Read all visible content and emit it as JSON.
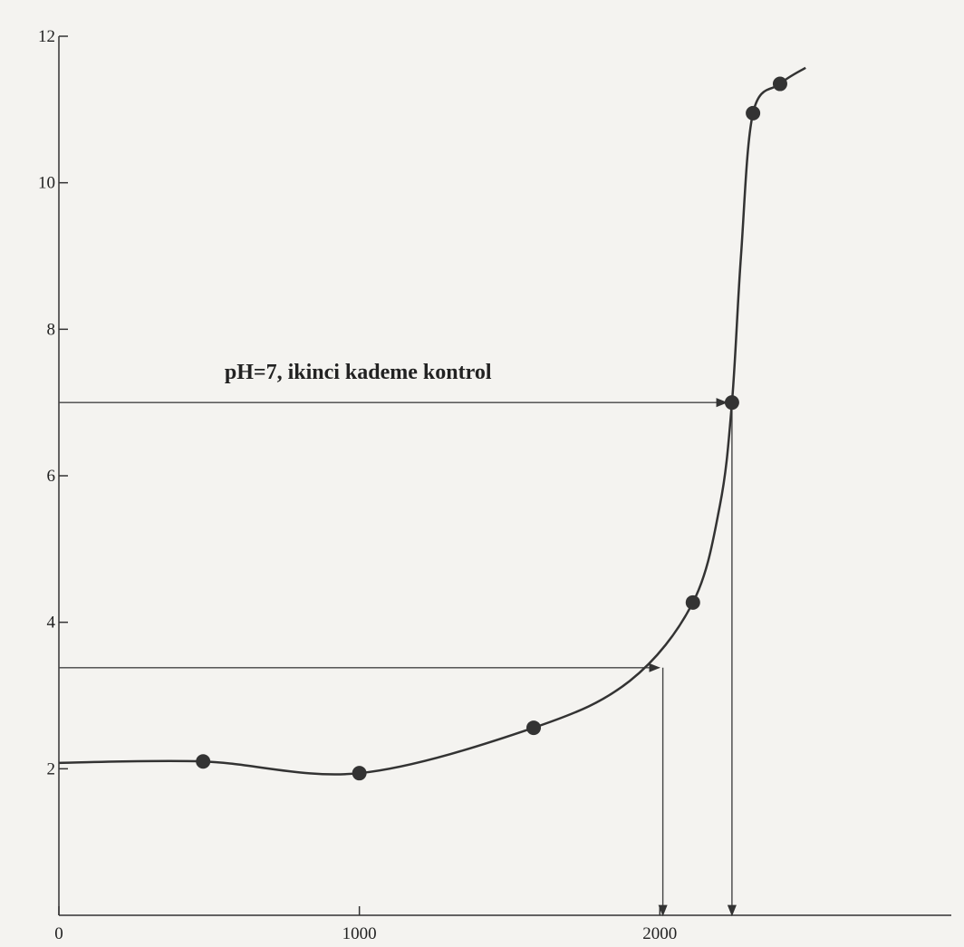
{
  "chart_data": {
    "type": "line",
    "x": [
      480,
      1000,
      1580,
      2110,
      2240,
      2310,
      2400
    ],
    "series": [
      {
        "color": "#333333",
        "values": [
          2.1,
          1.94,
          2.56,
          4.27,
          7.0,
          10.95,
          11.35
        ]
      }
    ],
    "curve": {
      "x": [
        0,
        480,
        1000,
        1580,
        1900,
        2110,
        2200,
        2240,
        2270,
        2310,
        2400,
        2485
      ],
      "values": [
        2.08,
        2.1,
        1.94,
        2.56,
        3.2,
        4.27,
        5.6,
        7.0,
        9.0,
        10.95,
        11.35,
        11.57
      ]
    },
    "xlim": [
      0,
      2970
    ],
    "ylim": [
      0,
      12
    ],
    "xticks": [
      0,
      1000,
      2000
    ],
    "yticks": [
      2,
      4,
      6,
      8,
      10,
      12
    ],
    "annotation": {
      "text": "pH=7, ikinci kademe kontrol",
      "x": 2240,
      "y": 7.0
    },
    "reference": {
      "x": 2010,
      "y": 3.38
    }
  }
}
